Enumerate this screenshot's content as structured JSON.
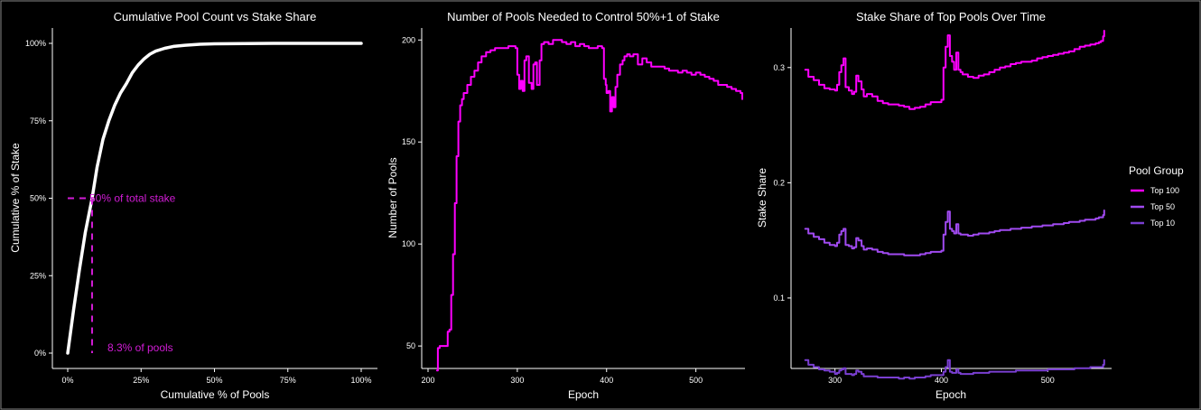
{
  "chart_data": [
    {
      "type": "line",
      "title": "Cumulative Pool Count vs Stake Share",
      "xlabel": "Cumulative % of Pools",
      "ylabel": "Cumulative % of Stake",
      "xlim": [
        0,
        100
      ],
      "ylim": [
        0,
        100
      ],
      "xticks": [
        0,
        25,
        50,
        75,
        100
      ],
      "xtick_labels": [
        "0%",
        "25%",
        "50%",
        "75%",
        "100%"
      ],
      "yticks": [
        0,
        25,
        50,
        75,
        100
      ],
      "ytick_labels": [
        "0%",
        "25%",
        "50%",
        "75%",
        "100%"
      ],
      "grid": false,
      "series": [
        {
          "color": "#ffffff",
          "x": [
            0,
            2,
            4,
            6,
            8.3,
            10,
            12,
            14,
            16,
            18,
            20,
            22,
            24,
            26,
            28,
            30,
            33,
            36,
            40,
            45,
            50,
            60,
            70,
            80,
            90,
            100
          ],
          "y": [
            0,
            14,
            27,
            39,
            50,
            60,
            69,
            75,
            80,
            84,
            87,
            90.5,
            93,
            95,
            96.5,
            97.5,
            98.4,
            99,
            99.4,
            99.7,
            99.85,
            99.95,
            100,
            100,
            100,
            100
          ]
        }
      ],
      "annotations": [
        {
          "text": "50% of total stake",
          "x": 8.3,
          "y": 50,
          "color": "#d21cd6"
        },
        {
          "text": "8.3% of pools",
          "x": 8.3,
          "y": 0,
          "color": "#d21cd6"
        }
      ]
    },
    {
      "type": "line",
      "title": "Number of Pools Needed to Control 50%+1 of Stake",
      "xlabel": "Epoch",
      "ylabel": "Number of Pools",
      "xlim": [
        200,
        555
      ],
      "ylim": [
        35,
        205
      ],
      "xticks": [
        200,
        300,
        400,
        500
      ],
      "xtick_labels": [
        "200",
        "300",
        "400",
        "500"
      ],
      "yticks": [
        50,
        100,
        150,
        200
      ],
      "ytick_labels": [
        "50",
        "100",
        "150",
        "200"
      ],
      "grid": false,
      "series": [
        {
          "color": "#ff00ff",
          "x": [
            210,
            211,
            213,
            218,
            222,
            224,
            226,
            228,
            230,
            232,
            234,
            236,
            238,
            240,
            244,
            248,
            252,
            256,
            260,
            265,
            270,
            275,
            280,
            285,
            290,
            295,
            298,
            300,
            302,
            304,
            306,
            308,
            310,
            313,
            316,
            318,
            320,
            322,
            325,
            327,
            330,
            335,
            340,
            345,
            350,
            355,
            360,
            365,
            370,
            375,
            380,
            385,
            390,
            395,
            397,
            399,
            400,
            402,
            404,
            406,
            408,
            410,
            412,
            415,
            418,
            420,
            423,
            426,
            430,
            435,
            440,
            445,
            450,
            455,
            460,
            465,
            470,
            475,
            480,
            485,
            490,
            495,
            500,
            505,
            510,
            515,
            520,
            525,
            530,
            535,
            540,
            545,
            548,
            550,
            552
          ],
          "y": [
            38,
            49,
            50,
            50,
            57,
            58,
            75,
            95,
            120,
            143,
            160,
            168,
            171,
            174,
            178,
            182,
            185,
            189,
            192,
            194,
            195,
            196,
            196,
            196,
            197,
            197,
            196,
            183,
            176,
            180,
            175,
            190,
            192,
            179,
            176,
            188,
            189,
            178,
            190,
            198,
            199,
            198,
            200,
            200,
            199,
            198,
            199,
            197,
            198,
            197,
            196,
            196,
            197,
            196,
            181,
            178,
            174,
            175,
            165,
            172,
            167,
            177,
            183,
            188,
            190,
            192,
            193,
            192,
            193,
            188,
            191,
            189,
            187,
            187,
            187,
            186,
            185,
            185,
            184,
            185,
            184,
            183,
            184,
            183,
            182,
            181,
            180,
            178,
            178,
            177,
            176,
            175,
            175,
            174,
            171
          ]
        }
      ]
    },
    {
      "type": "line",
      "title": "Stake Share of Top Pools Over Time",
      "xlabel": "Epoch",
      "ylabel": "Stake Share",
      "xlim": [
        257,
        560
      ],
      "ylim": [
        0.02,
        0.35
      ],
      "xticks": [
        300,
        400,
        500
      ],
      "xtick_labels": [
        "300",
        "400",
        "500"
      ],
      "yticks": [
        0.1,
        0.2,
        0.3
      ],
      "ytick_labels": [
        "0.1",
        "0.2",
        "0.3"
      ],
      "grid": false,
      "legend": {
        "title": "Pool Group",
        "position": "right"
      },
      "series": [
        {
          "name": "Top 100",
          "color": "#ff00ff",
          "x": [
            272,
            275,
            280,
            285,
            290,
            295,
            300,
            302,
            304,
            306,
            308,
            310,
            313,
            316,
            318,
            320,
            322,
            325,
            327,
            330,
            335,
            340,
            345,
            350,
            355,
            360,
            365,
            370,
            375,
            380,
            385,
            390,
            395,
            400,
            402,
            404,
            406,
            408,
            410,
            412,
            414,
            416,
            418,
            420,
            425,
            430,
            435,
            440,
            445,
            450,
            455,
            460,
            465,
            470,
            475,
            480,
            485,
            490,
            495,
            500,
            505,
            510,
            515,
            520,
            525,
            530,
            535,
            540,
            545,
            548,
            550,
            552,
            553
          ],
          "y": [
            0.298,
            0.292,
            0.289,
            0.285,
            0.282,
            0.281,
            0.28,
            0.285,
            0.296,
            0.302,
            0.308,
            0.283,
            0.28,
            0.277,
            0.279,
            0.293,
            0.288,
            0.281,
            0.275,
            0.277,
            0.275,
            0.271,
            0.269,
            0.268,
            0.268,
            0.267,
            0.266,
            0.264,
            0.265,
            0.266,
            0.268,
            0.27,
            0.27,
            0.272,
            0.3,
            0.318,
            0.328,
            0.31,
            0.305,
            0.298,
            0.313,
            0.298,
            0.296,
            0.294,
            0.292,
            0.291,
            0.293,
            0.294,
            0.296,
            0.298,
            0.3,
            0.301,
            0.303,
            0.304,
            0.305,
            0.305,
            0.306,
            0.308,
            0.309,
            0.31,
            0.311,
            0.312,
            0.313,
            0.314,
            0.316,
            0.318,
            0.319,
            0.32,
            0.321,
            0.322,
            0.323,
            0.327,
            0.332
          ]
        },
        {
          "name": "Top 50",
          "color": "#a04af0",
          "x": [
            272,
            275,
            280,
            285,
            290,
            295,
            300,
            302,
            304,
            306,
            308,
            310,
            313,
            316,
            318,
            320,
            322,
            325,
            327,
            330,
            335,
            340,
            345,
            350,
            355,
            360,
            365,
            370,
            375,
            380,
            385,
            390,
            395,
            400,
            402,
            404,
            406,
            408,
            410,
            412,
            414,
            416,
            418,
            420,
            425,
            430,
            435,
            440,
            445,
            450,
            455,
            460,
            465,
            470,
            475,
            480,
            485,
            490,
            495,
            500,
            505,
            510,
            515,
            520,
            525,
            530,
            535,
            540,
            545,
            548,
            550,
            552,
            553
          ],
          "y": [
            0.16,
            0.156,
            0.153,
            0.151,
            0.148,
            0.146,
            0.145,
            0.148,
            0.155,
            0.158,
            0.16,
            0.146,
            0.145,
            0.143,
            0.144,
            0.152,
            0.15,
            0.145,
            0.142,
            0.143,
            0.142,
            0.14,
            0.139,
            0.138,
            0.138,
            0.138,
            0.137,
            0.137,
            0.137,
            0.138,
            0.139,
            0.14,
            0.14,
            0.141,
            0.155,
            0.166,
            0.175,
            0.16,
            0.158,
            0.156,
            0.164,
            0.156,
            0.155,
            0.155,
            0.154,
            0.155,
            0.156,
            0.156,
            0.157,
            0.158,
            0.159,
            0.159,
            0.16,
            0.16,
            0.161,
            0.161,
            0.162,
            0.162,
            0.163,
            0.163,
            0.164,
            0.164,
            0.165,
            0.166,
            0.166,
            0.167,
            0.168,
            0.168,
            0.169,
            0.17,
            0.17,
            0.172,
            0.176
          ]
        },
        {
          "name": "Top 10",
          "color": "#7a3fd1",
          "x": [
            272,
            275,
            280,
            285,
            290,
            295,
            300,
            302,
            304,
            306,
            308,
            310,
            313,
            316,
            318,
            320,
            322,
            325,
            327,
            330,
            335,
            340,
            345,
            350,
            355,
            360,
            365,
            370,
            375,
            380,
            385,
            390,
            395,
            400,
            402,
            404,
            406,
            408,
            410,
            412,
            414,
            416,
            418,
            420,
            425,
            430,
            435,
            440,
            445,
            450,
            455,
            460,
            465,
            470,
            475,
            480,
            485,
            490,
            495,
            500,
            505,
            510,
            515,
            520,
            525,
            530,
            535,
            540,
            545,
            548,
            550,
            552,
            553
          ],
          "y": [
            0.046,
            0.042,
            0.04,
            0.038,
            0.037,
            0.036,
            0.034,
            0.035,
            0.037,
            0.038,
            0.039,
            0.034,
            0.034,
            0.033,
            0.034,
            0.037,
            0.036,
            0.034,
            0.032,
            0.032,
            0.032,
            0.031,
            0.031,
            0.031,
            0.031,
            0.03,
            0.031,
            0.03,
            0.031,
            0.031,
            0.032,
            0.033,
            0.033,
            0.033,
            0.036,
            0.04,
            0.046,
            0.036,
            0.035,
            0.035,
            0.038,
            0.035,
            0.034,
            0.034,
            0.034,
            0.035,
            0.035,
            0.035,
            0.036,
            0.036,
            0.036,
            0.036,
            0.036,
            0.037,
            0.037,
            0.037,
            0.037,
            0.037,
            0.037,
            0.038,
            0.038,
            0.038,
            0.038,
            0.038,
            0.039,
            0.039,
            0.039,
            0.04,
            0.04,
            0.04,
            0.04,
            0.042,
            0.046
          ]
        }
      ]
    }
  ]
}
